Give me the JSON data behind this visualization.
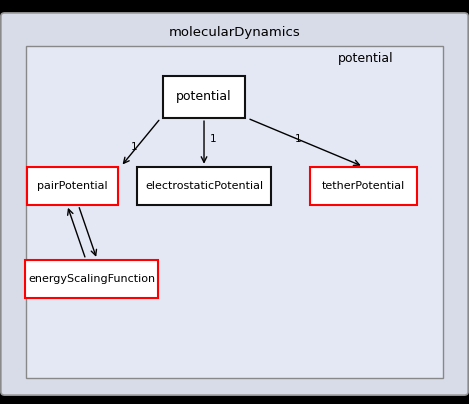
{
  "fig_width": 4.69,
  "fig_height": 4.04,
  "dpi": 100,
  "bg_outer": "#000000",
  "bg_md_box": "#d8dce8",
  "bg_inner_box": "#e4e8f4",
  "border_md_color": "#999999",
  "border_inner_color": "#888888",
  "box_white_fill": "#ffffff",
  "box_red_border": "#ff0000",
  "box_black_border": "#111111",
  "text_color": "#000000",
  "title_md": "molecularDynamics",
  "label_potential": "potential",
  "label_potential2": "potential",
  "label_pair": "pairPotential",
  "label_electro": "electrostaticPotential",
  "label_tether": "tetherPotential",
  "label_energy": "energyScalingFunction",
  "nodes_x": {
    "potential": 0.435,
    "pair": 0.155,
    "electro": 0.435,
    "tether": 0.775,
    "energy": 0.195,
    "phantom": 0.435
  },
  "nodes_y": {
    "potential": 0.76,
    "pair": 0.54,
    "electro": 0.54,
    "tether": 0.54,
    "energy": 0.31,
    "phantom": -0.08
  },
  "node_widths": {
    "potential": 0.175,
    "pair": 0.195,
    "electro": 0.285,
    "tether": 0.23,
    "energy": 0.285,
    "phantom": 0.185
  },
  "node_heights": {
    "potential": 0.105,
    "pair": 0.095,
    "electro": 0.095,
    "tether": 0.095,
    "energy": 0.095,
    "phantom": 0.08
  }
}
